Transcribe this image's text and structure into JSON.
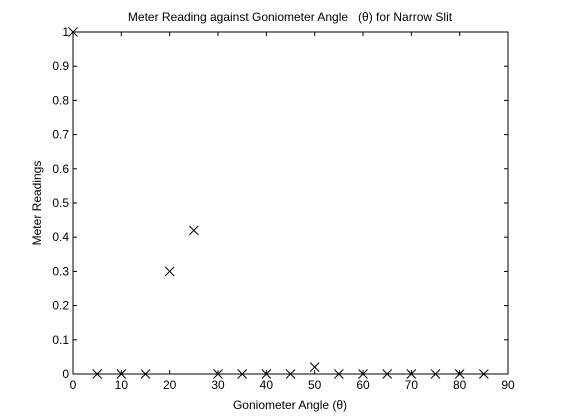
{
  "chart_data": {
    "type": "scatter",
    "title": "Meter Reading against Goniometer Angle   (θ) for Narrow Slit",
    "xlabel": "Goniometer Angle (θ)",
    "ylabel": "Meter Readings",
    "xlim": [
      0,
      90
    ],
    "ylim": [
      0,
      1
    ],
    "xticks": [
      0,
      10,
      20,
      30,
      40,
      50,
      60,
      70,
      80,
      90
    ],
    "yticks": [
      0,
      0.1,
      0.2,
      0.3,
      0.4,
      0.5,
      0.6,
      0.7,
      0.8,
      0.9,
      1
    ],
    "grid": false,
    "marker": "x",
    "marker_color": "#000000",
    "series": [
      {
        "x": [
          0,
          5,
          10,
          15,
          20,
          25,
          30,
          35,
          40,
          45,
          50,
          55,
          60,
          65,
          70,
          75,
          80,
          85
        ],
        "y": [
          1,
          0,
          0,
          0,
          0.3,
          0.42,
          0,
          0,
          0,
          0,
          0.02,
          0,
          0,
          0,
          0,
          0,
          0,
          0
        ]
      }
    ]
  }
}
